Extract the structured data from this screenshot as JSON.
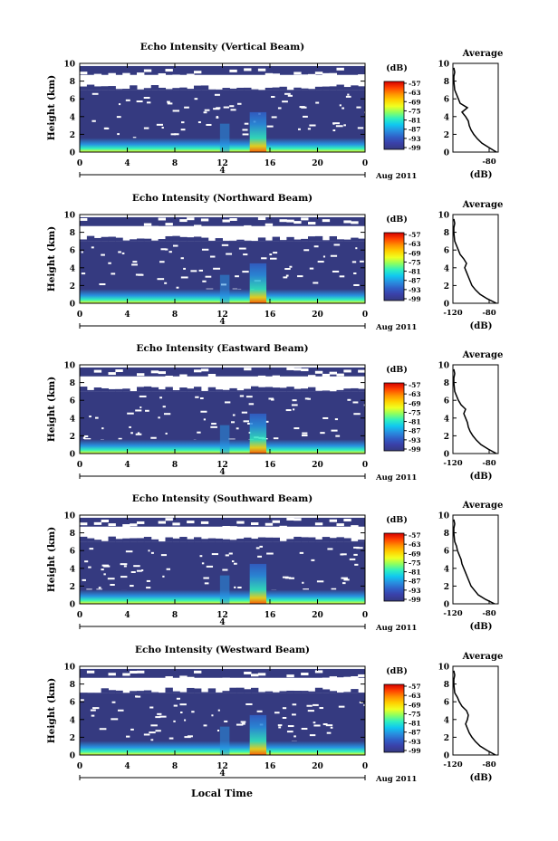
{
  "figure": {
    "xlabel": "Local Time",
    "date_label": "Aug 2011",
    "day_marker": "4"
  },
  "colorbar": {
    "unit": "(dB)",
    "ticks": [
      "-57",
      "-63",
      "-69",
      "-75",
      "-81",
      "-87",
      "-93",
      "-99"
    ],
    "stops": [
      "#d40000",
      "#ff4000",
      "#ff9000",
      "#ffd000",
      "#f0ff20",
      "#8cff60",
      "#30f0c0",
      "#10c8f0",
      "#2890e0",
      "#3060c8",
      "#3a40a8",
      "#353a80"
    ]
  },
  "colors": {
    "background_echo": "#353a80",
    "no_data": "#ffffff"
  },
  "chart_data": [
    {
      "type": "heatmap",
      "title": "Echo Intensity (Vertical Beam)",
      "ylabel": "Height (km)",
      "xlim": [
        0,
        24
      ],
      "ylim": [
        0,
        10
      ],
      "xticks": [
        "0",
        "4",
        "8",
        "12",
        "16",
        "20",
        "0"
      ],
      "yticks": [
        "0",
        "2",
        "4",
        "6",
        "8",
        "10"
      ],
      "profile": {
        "title": "Average",
        "xlabel": "(dB)",
        "xticks": [
          "",
          "-80"
        ],
        "xlim": [
          -120,
          -70
        ],
        "heights": [
          0.0,
          0.5,
          1.0,
          1.5,
          2.0,
          2.5,
          3.0,
          3.5,
          4.0,
          4.5,
          5.0,
          5.5,
          6.0,
          6.5,
          7.0,
          8.0,
          8.5,
          9.0,
          9.5
        ],
        "values": [
          -72,
          -80,
          -88,
          -93,
          -97,
          -100,
          -102,
          -103,
          -106,
          -110,
          -104,
          -112,
          -114,
          -116,
          -118,
          -119,
          -119,
          -118,
          -119
        ]
      }
    },
    {
      "type": "heatmap",
      "title": "Echo Intensity (Northward Beam)",
      "ylabel": "Height (km)",
      "xlim": [
        0,
        24
      ],
      "ylim": [
        0,
        10
      ],
      "xticks": [
        "0",
        "4",
        "8",
        "12",
        "16",
        "20",
        "0"
      ],
      "yticks": [
        "0",
        "2",
        "4",
        "6",
        "8",
        "10"
      ],
      "profile": {
        "title": "Average",
        "xlabel": "(dB)",
        "xticks": [
          "-120",
          "-80"
        ],
        "xlim": [
          -120,
          -70
        ],
        "heights": [
          0.0,
          0.5,
          1.0,
          1.5,
          2.0,
          2.5,
          3.0,
          3.5,
          4.0,
          4.5,
          5.0,
          5.5,
          6.0,
          6.5,
          7.0,
          8.0,
          8.5,
          9.0,
          9.5
        ],
        "values": [
          -72,
          -82,
          -90,
          -95,
          -99,
          -101,
          -103,
          -105,
          -107,
          -105,
          -108,
          -112,
          -114,
          -116,
          -118,
          -119,
          -119,
          -118,
          -119
        ]
      }
    },
    {
      "type": "heatmap",
      "title": "Echo Intensity (Eastward Beam)",
      "ylabel": "Height (km)",
      "xlim": [
        0,
        24
      ],
      "ylim": [
        0,
        10
      ],
      "xticks": [
        "0",
        "4",
        "8",
        "12",
        "16",
        "20",
        "0"
      ],
      "yticks": [
        "0",
        "2",
        "4",
        "6",
        "8",
        "10"
      ],
      "profile": {
        "title": "Average",
        "xlabel": "(dB)",
        "xticks": [
          "-120",
          "-80"
        ],
        "xlim": [
          -120,
          -70
        ],
        "heights": [
          0.0,
          0.5,
          1.0,
          1.5,
          2.0,
          2.5,
          3.0,
          3.5,
          4.0,
          4.5,
          5.0,
          5.5,
          6.0,
          6.5,
          7.0,
          8.0,
          8.5,
          9.0,
          9.5
        ],
        "values": [
          -72,
          -81,
          -89,
          -94,
          -98,
          -101,
          -103,
          -104,
          -106,
          -108,
          -106,
          -111,
          -114,
          -116,
          -118,
          -119,
          -119,
          -118,
          -119
        ]
      }
    },
    {
      "type": "heatmap",
      "title": "Echo Intensity (Southward Beam)",
      "ylabel": "Height (km)",
      "xlim": [
        0,
        24
      ],
      "ylim": [
        0,
        10
      ],
      "xticks": [
        "0",
        "4",
        "8",
        "12",
        "16",
        "20",
        "0"
      ],
      "yticks": [
        "0",
        "2",
        "4",
        "6",
        "8",
        "10"
      ],
      "profile": {
        "title": "Average",
        "xlabel": "(dB)",
        "xticks": [
          "-120",
          "-80"
        ],
        "xlim": [
          -120,
          -70
        ],
        "heights": [
          0.0,
          0.5,
          1.0,
          1.5,
          2.0,
          2.5,
          3.0,
          3.5,
          4.0,
          4.5,
          5.0,
          5.5,
          6.0,
          6.5,
          7.0,
          8.0,
          8.5,
          9.0,
          9.5
        ],
        "values": [
          -74,
          -84,
          -92,
          -96,
          -100,
          -102,
          -104,
          -106,
          -108,
          -110,
          -111,
          -113,
          -115,
          -116,
          -118,
          -119,
          -119,
          -118,
          -119
        ]
      }
    },
    {
      "type": "heatmap",
      "title": "Echo Intensity (Westward Beam)",
      "ylabel": "Height (km)",
      "xlim": [
        0,
        24
      ],
      "ylim": [
        0,
        10
      ],
      "xticks": [
        "0",
        "4",
        "8",
        "12",
        "16",
        "20",
        "0"
      ],
      "yticks": [
        "0",
        "2",
        "4",
        "6",
        "8",
        "10"
      ],
      "profile": {
        "title": "Average",
        "xlabel": "(dB)",
        "xticks": [
          "-120",
          "-80"
        ],
        "xlim": [
          -120,
          -70
        ],
        "heights": [
          0.0,
          0.5,
          1.0,
          1.5,
          2.0,
          2.5,
          3.0,
          3.5,
          4.0,
          4.5,
          5.0,
          5.5,
          6.0,
          6.5,
          7.0,
          8.0,
          8.5,
          9.0,
          9.5
        ],
        "values": [
          -73,
          -82,
          -90,
          -95,
          -99,
          -102,
          -104,
          -106,
          -104,
          -103,
          -105,
          -110,
          -113,
          -115,
          -118,
          -119,
          -119,
          -118,
          -119
        ]
      }
    }
  ]
}
